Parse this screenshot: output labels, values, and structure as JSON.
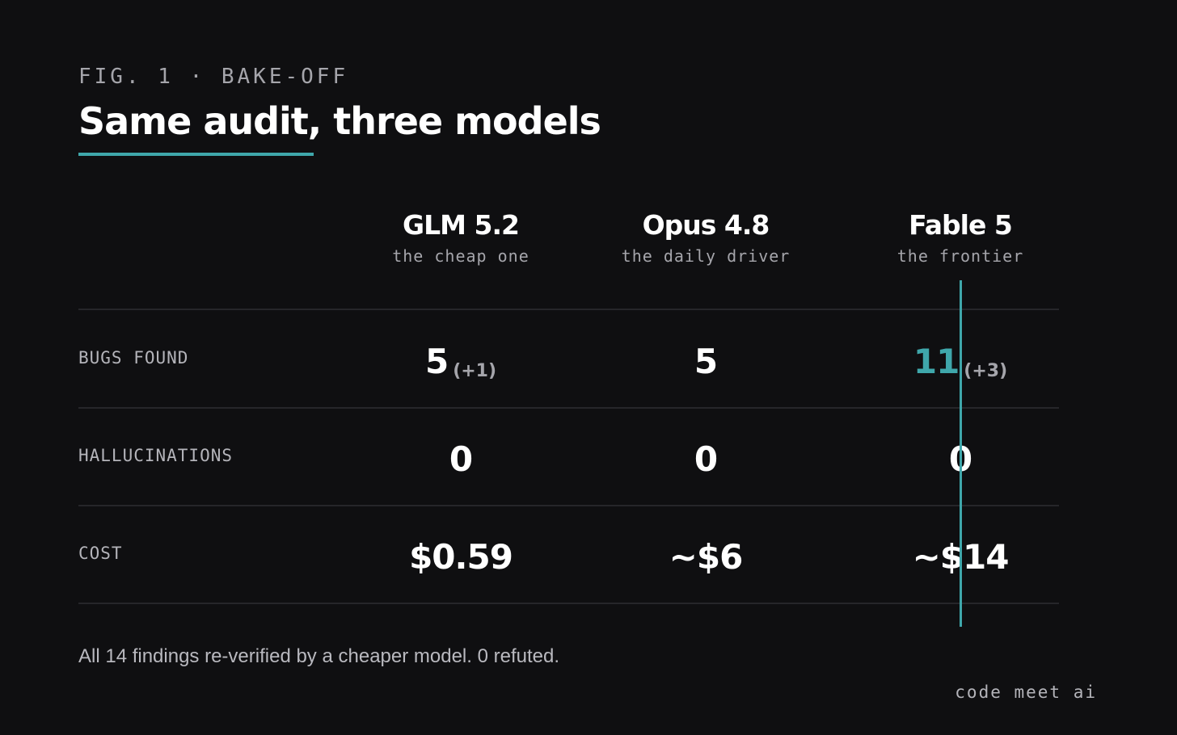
{
  "header": {
    "fig_label": "FIG. 1 · BAKE-OFF",
    "title": "Same audit, three models"
  },
  "columns": [
    {
      "name": "GLM 5.2",
      "subtitle": "the cheap one"
    },
    {
      "name": "Opus 4.8",
      "subtitle": "the daily driver"
    },
    {
      "name": "Fable 5",
      "subtitle": "the frontier"
    }
  ],
  "rows": [
    {
      "label": "BUGS FOUND",
      "cells": [
        {
          "value": "5",
          "delta": "(+1)"
        },
        {
          "value": "5",
          "delta": ""
        },
        {
          "value": "11",
          "delta": "(+3)"
        }
      ]
    },
    {
      "label": "HALLUCINATIONS",
      "cells": [
        {
          "value": "0",
          "delta": ""
        },
        {
          "value": "0",
          "delta": ""
        },
        {
          "value": "0",
          "delta": ""
        }
      ]
    },
    {
      "label": "COST",
      "cells": [
        {
          "value": "$0.59",
          "delta": ""
        },
        {
          "value": "~$6",
          "delta": ""
        },
        {
          "value": "~$14",
          "delta": ""
        }
      ]
    }
  ],
  "footnote": "All 14 findings re-verified by a cheaper model. 0 refuted.",
  "brand": "code meet ai",
  "colors": {
    "background": "#0f0f11",
    "accent": "#3fa7ab",
    "text": "#ffffff",
    "muted": "#a5a5ab"
  }
}
